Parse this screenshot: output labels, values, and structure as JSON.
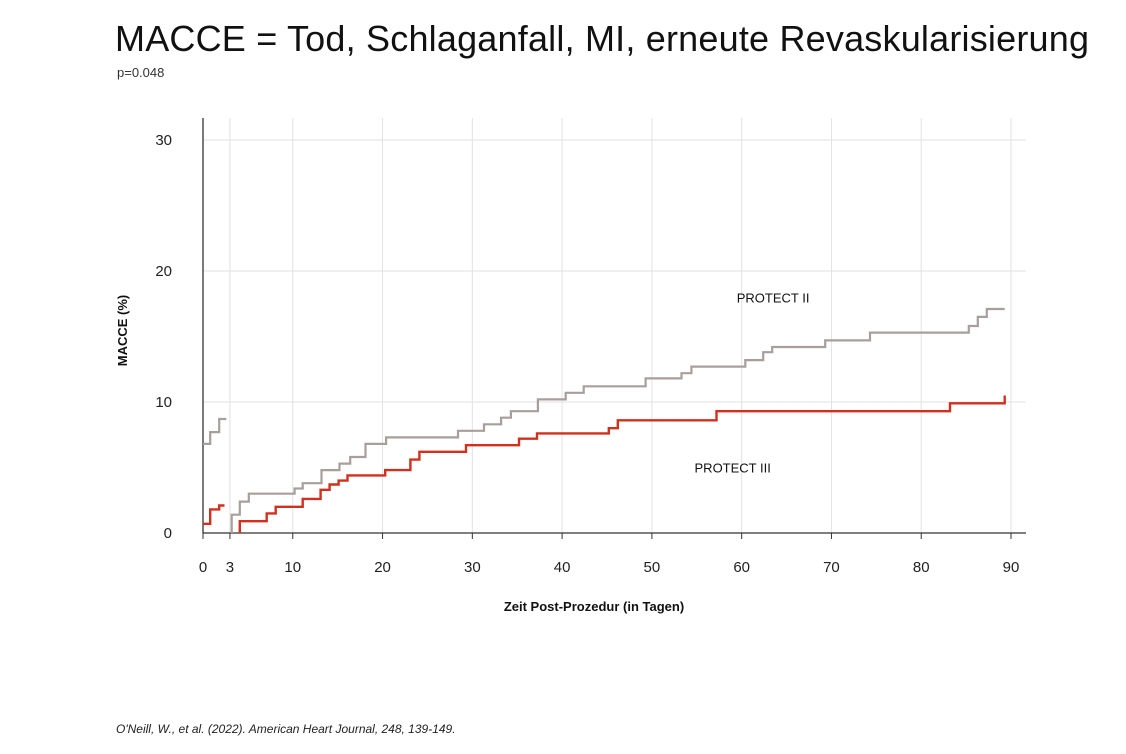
{
  "page": {
    "title": "MACCE = Tod, Schlaganfall, MI, erneute Revaskularisierung",
    "subtitle": "p=0.048",
    "citation": "O'Neill, W., et al. (2022). American Heart Journal, 248, 139-149."
  },
  "chart_data": {
    "type": "line",
    "step": true,
    "xlabel": "Zeit Post-Prozedur (in Tagen)",
    "ylabel": "MACCE (%)",
    "xlim": [
      0,
      90
    ],
    "ylim": [
      0,
      30
    ],
    "x_ticks": [
      0,
      3,
      10,
      20,
      30,
      40,
      50,
      60,
      70,
      80,
      90
    ],
    "y_ticks": [
      0,
      10,
      20,
      30
    ],
    "grid": true,
    "colors": {
      "PROTECT II": "#a89f9a",
      "PROTECT III": "#d0311f",
      "grid": "#e2e2e2",
      "axis": "#333333"
    },
    "annotations": [
      {
        "text": "PROTECT II",
        "series": "PROTECT II"
      },
      {
        "text": "PROTECT III",
        "series": "PROTECT III"
      }
    ],
    "series": [
      {
        "name": "PROTECT II",
        "segments": [
          [
            [
              0,
              6.8
            ],
            [
              0.8,
              6.8
            ],
            [
              0.8,
              7.7
            ],
            [
              1.8,
              7.7
            ],
            [
              1.8,
              8.7
            ],
            [
              2.6,
              8.7
            ]
          ],
          [
            [
              3.2,
              0
            ],
            [
              3.2,
              1.4
            ],
            [
              4.1,
              1.4
            ],
            [
              4.1,
              2.4
            ],
            [
              5.1,
              2.4
            ],
            [
              5.1,
              3.0
            ],
            [
              10.2,
              3.0
            ],
            [
              10.2,
              3.4
            ],
            [
              11.1,
              3.4
            ],
            [
              11.1,
              3.8
            ],
            [
              13.2,
              3.8
            ],
            [
              13.2,
              4.8
            ],
            [
              15.2,
              4.8
            ],
            [
              15.2,
              5.3
            ],
            [
              16.4,
              5.3
            ],
            [
              16.4,
              5.8
            ],
            [
              18.1,
              5.8
            ],
            [
              18.1,
              6.8
            ],
            [
              20.4,
              6.8
            ],
            [
              20.4,
              7.3
            ],
            [
              28.4,
              7.3
            ],
            [
              28.4,
              7.8
            ],
            [
              31.3,
              7.8
            ],
            [
              31.3,
              8.3
            ],
            [
              33.2,
              8.3
            ],
            [
              33.2,
              8.8
            ],
            [
              34.3,
              8.8
            ],
            [
              34.3,
              9.3
            ],
            [
              37.3,
              9.3
            ],
            [
              37.3,
              10.2
            ],
            [
              40.4,
              10.2
            ],
            [
              40.4,
              10.7
            ],
            [
              42.4,
              10.7
            ],
            [
              42.4,
              11.2
            ],
            [
              49.3,
              11.2
            ],
            [
              49.3,
              11.8
            ],
            [
              53.3,
              11.8
            ],
            [
              53.3,
              12.2
            ],
            [
              54.4,
              12.2
            ],
            [
              54.4,
              12.7
            ],
            [
              60.4,
              12.7
            ],
            [
              60.4,
              13.2
            ],
            [
              62.4,
              13.2
            ],
            [
              62.4,
              13.8
            ],
            [
              63.4,
              13.8
            ],
            [
              63.4,
              14.2
            ],
            [
              69.3,
              14.2
            ],
            [
              69.3,
              14.7
            ],
            [
              74.3,
              14.7
            ],
            [
              74.3,
              15.3
            ],
            [
              85.3,
              15.3
            ],
            [
              85.3,
              15.8
            ],
            [
              86.3,
              15.8
            ],
            [
              86.3,
              16.5
            ],
            [
              87.3,
              16.5
            ],
            [
              87.3,
              17.1
            ],
            [
              89.3,
              17.1
            ]
          ]
        ]
      },
      {
        "name": "PROTECT III",
        "segments": [
          [
            [
              0,
              0.7
            ],
            [
              0.8,
              0.7
            ],
            [
              0.8,
              1.8
            ],
            [
              1.8,
              1.8
            ],
            [
              1.8,
              2.1
            ],
            [
              2.4,
              2.1
            ]
          ],
          [
            [
              4.1,
              0
            ],
            [
              4.1,
              0.9
            ],
            [
              7.1,
              0.9
            ],
            [
              7.1,
              1.5
            ],
            [
              8.1,
              1.5
            ],
            [
              8.1,
              2.0
            ],
            [
              11.1,
              2.0
            ],
            [
              11.1,
              2.6
            ],
            [
              13.1,
              2.6
            ],
            [
              13.1,
              3.3
            ],
            [
              14.1,
              3.3
            ],
            [
              14.1,
              3.7
            ],
            [
              15.1,
              3.7
            ],
            [
              15.1,
              4.0
            ],
            [
              16.1,
              4.0
            ],
            [
              16.1,
              4.4
            ],
            [
              20.3,
              4.4
            ],
            [
              20.3,
              4.8
            ],
            [
              23.1,
              4.8
            ],
            [
              23.1,
              5.6
            ],
            [
              24.1,
              5.6
            ],
            [
              24.1,
              6.2
            ],
            [
              29.3,
              6.2
            ],
            [
              29.3,
              6.7
            ],
            [
              35.2,
              6.7
            ],
            [
              35.2,
              7.2
            ],
            [
              37.2,
              7.2
            ],
            [
              37.2,
              7.6
            ],
            [
              45.2,
              7.6
            ],
            [
              45.2,
              8.0
            ],
            [
              46.2,
              8.0
            ],
            [
              46.2,
              8.6
            ],
            [
              57.2,
              8.6
            ],
            [
              57.2,
              9.3
            ],
            [
              83.2,
              9.3
            ],
            [
              83.2,
              9.9
            ],
            [
              89.3,
              9.9
            ],
            [
              89.3,
              10.5
            ]
          ]
        ]
      }
    ]
  }
}
